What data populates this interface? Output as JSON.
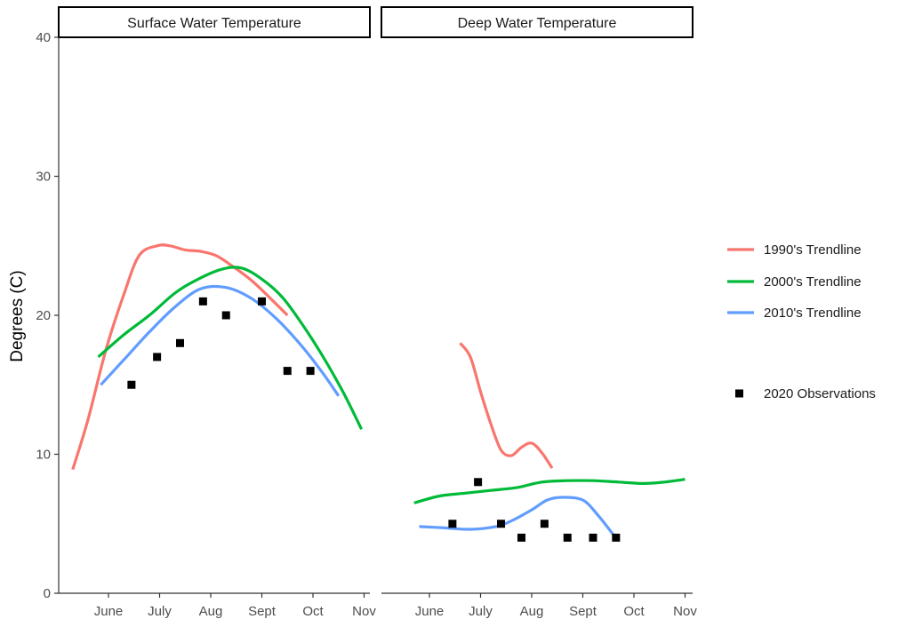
{
  "chart_data": {
    "type": "line",
    "ylabel": "Degrees (C)",
    "xlabel": "",
    "ylim": [
      0,
      40
    ],
    "y_ticks": [
      "0",
      "10",
      "20",
      "30",
      "40"
    ],
    "x_ticks": [
      "June",
      "July",
      "Aug",
      "Sept",
      "Oct",
      "Nov"
    ],
    "grid": false,
    "legend_position": "right",
    "series_styles": [
      {
        "name": "1990's Trendline",
        "color": "#F8766D",
        "kind": "line"
      },
      {
        "name": "2000's Trendline",
        "color": "#00BA38",
        "kind": "line"
      },
      {
        "name": "2010's Trendline",
        "color": "#619CFF",
        "kind": "line"
      },
      {
        "name": "2020 Observations",
        "color": "#000000",
        "kind": "square"
      }
    ],
    "panels": [
      {
        "title": "Surface Water Temperature",
        "series": [
          {
            "name": "1990's Trendline",
            "x": [
              -0.7,
              -0.4,
              -0.05,
              0.3,
              0.6,
              0.95,
              1.2,
              1.5,
              1.8,
              2.1,
              2.4,
              2.8,
              3.2,
              3.5
            ],
            "y": [
              8.9,
              12.5,
              17.5,
              21.5,
              24.3,
              25.0,
              25.0,
              24.7,
              24.6,
              24.3,
              23.6,
              22.5,
              21.1,
              20.0
            ]
          },
          {
            "name": "2000's Trendline",
            "x": [
              -0.2,
              0.3,
              0.8,
              1.3,
              1.7,
              2.2,
              2.6,
              3.0,
              3.4,
              3.8,
              4.2,
              4.6,
              4.95
            ],
            "y": [
              17.0,
              18.6,
              20.0,
              21.6,
              22.5,
              23.3,
              23.4,
              22.6,
              21.3,
              19.3,
              17.0,
              14.4,
              11.8
            ]
          },
          {
            "name": "2010's Trendline",
            "x": [
              -0.15,
              0.3,
              0.8,
              1.3,
              1.8,
              2.3,
              2.8,
              3.3,
              3.8,
              4.2,
              4.5
            ],
            "y": [
              15.0,
              16.8,
              18.8,
              20.6,
              21.9,
              22.0,
              21.2,
              19.7,
              17.7,
              15.8,
              14.2
            ]
          },
          {
            "name": "2020 Observations",
            "x": [
              0.45,
              0.95,
              1.4,
              1.85,
              2.3,
              3.0,
              3.5,
              3.95
            ],
            "y": [
              15,
              17,
              18,
              21,
              20,
              21,
              16,
              16
            ]
          }
        ]
      },
      {
        "title": "Deep Water Temperature",
        "series": [
          {
            "name": "1990's Trendline",
            "x": [
              0.6,
              0.8,
              1.0,
              1.2,
              1.4,
              1.6,
              1.8,
              2.0,
              2.2,
              2.4
            ],
            "y": [
              18.0,
              17.0,
              14.5,
              12.2,
              10.3,
              9.9,
              10.5,
              10.8,
              10.1,
              9.0
            ]
          },
          {
            "name": "2000's Trendline",
            "x": [
              -0.3,
              0.2,
              0.7,
              1.2,
              1.7,
              2.2,
              2.7,
              3.2,
              3.7,
              4.2,
              4.6,
              5.0
            ],
            "y": [
              6.5,
              7.0,
              7.2,
              7.4,
              7.6,
              8.0,
              8.1,
              8.1,
              8.0,
              7.9,
              8.0,
              8.2
            ]
          },
          {
            "name": "2010's Trendline",
            "x": [
              -0.2,
              0.3,
              0.8,
              1.3,
              1.6,
              2.0,
              2.3,
              2.6,
              3.0,
              3.3,
              3.6
            ],
            "y": [
              4.8,
              4.7,
              4.6,
              4.8,
              5.2,
              6.0,
              6.7,
              6.9,
              6.7,
              5.6,
              4.2
            ]
          },
          {
            "name": "2020 Observations",
            "x": [
              0.45,
              0.95,
              1.4,
              1.8,
              2.25,
              2.7,
              3.2,
              3.65
            ],
            "y": [
              5,
              8,
              5,
              4,
              5,
              4,
              4,
              4
            ]
          }
        ]
      }
    ]
  }
}
